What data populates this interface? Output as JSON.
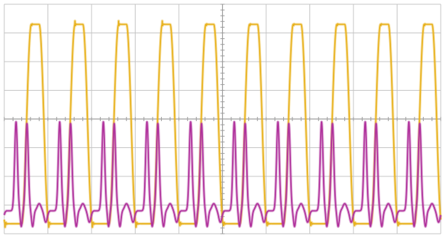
{
  "chart_data": {
    "type": "line",
    "grid": true,
    "grid_divisions": {
      "x": 10,
      "y": 8
    },
    "xlim": [
      0,
      10
    ],
    "ylim": [
      0,
      8
    ],
    "series": [
      {
        "color": "#e8b21f",
        "waveform": "square",
        "cycles": 10,
        "period_div": 1.0,
        "high_div": 7.3,
        "low_div": 0.35,
        "duty": 0.4,
        "edge_div": 0.22,
        "overshoot_div": 0.12
      },
      {
        "color": "#b0329c",
        "waveform": "double-pulse",
        "cycles": 10,
        "period_div": 1.0,
        "peak_div": 3.9,
        "baseline_div": 0.8,
        "trough_div": 0.25
      }
    ]
  }
}
